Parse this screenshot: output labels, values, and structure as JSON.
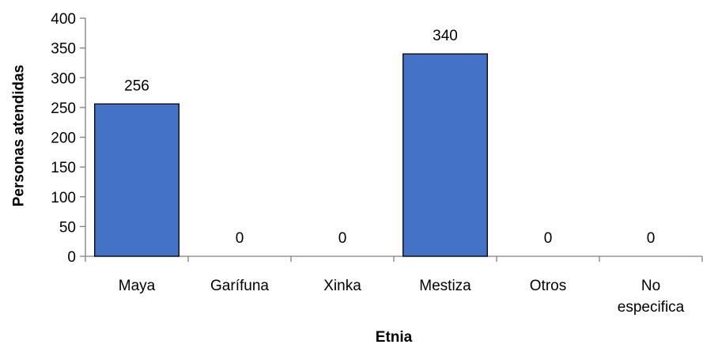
{
  "chart_data": {
    "type": "bar",
    "categories": [
      [
        "Maya"
      ],
      [
        "Garífuna"
      ],
      [
        "Xinka"
      ],
      [
        "Mestiza"
      ],
      [
        "Otros"
      ],
      [
        "No",
        "especifica"
      ]
    ],
    "values": [
      256,
      0,
      0,
      340,
      0,
      0
    ],
    "data_labels": [
      "256",
      "0",
      "0",
      "340",
      "0",
      "0"
    ],
    "xlabel": "Etnia",
    "ylabel": "Personas atendidas",
    "ylim": [
      0,
      400
    ],
    "yticks": [
      0,
      50,
      100,
      150,
      200,
      250,
      300,
      350,
      400
    ],
    "grid": false,
    "bar_color": "#4472C4",
    "bar_edge_color": "#000000",
    "axis_color": "#808080"
  }
}
